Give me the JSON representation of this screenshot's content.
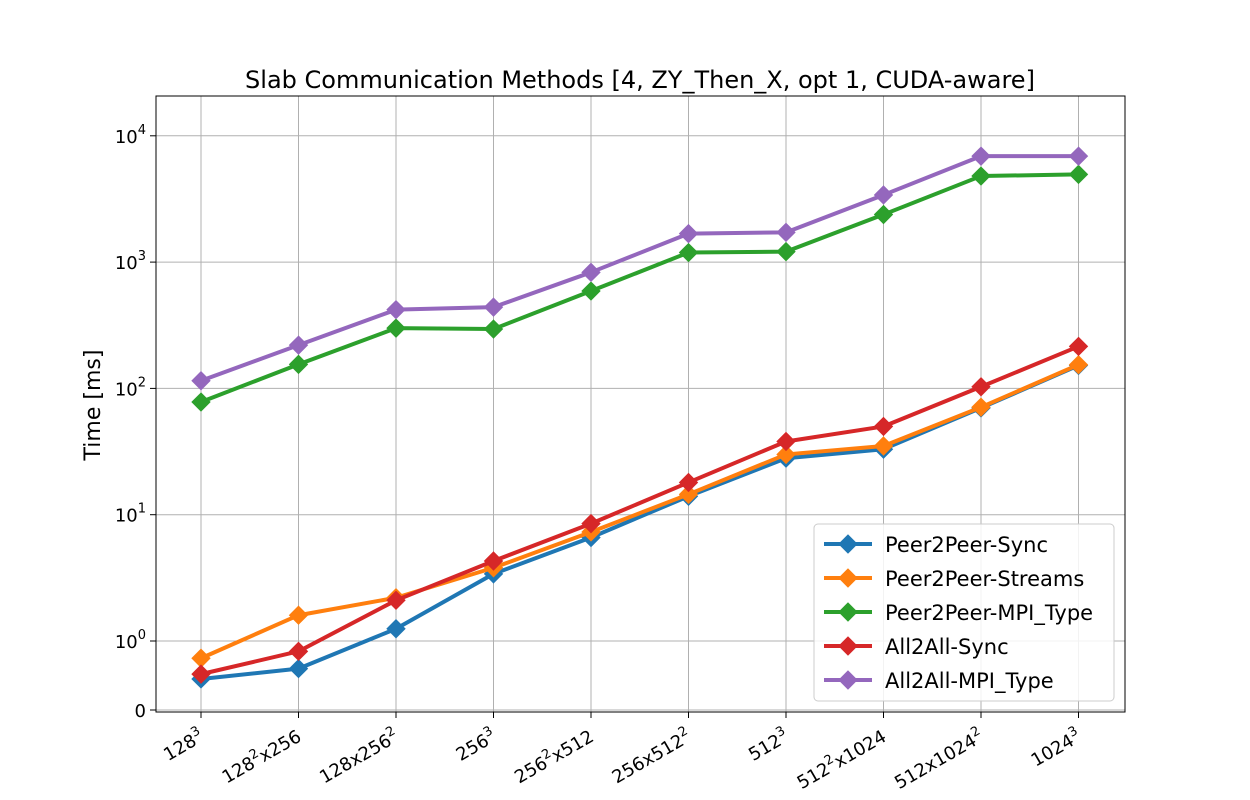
{
  "chart_data": {
    "type": "line",
    "title": "Slab Communication Methods [4, ZY_Then_X, opt 1, CUDA-aware]",
    "xlabel": "",
    "ylabel": "Time [ms]",
    "y_scale": "symlog",
    "symlog_linthresh": 1,
    "ylim": [
      0,
      12000
    ],
    "y_ticks": [
      {
        "value": 0,
        "base": "0",
        "exp": ""
      },
      {
        "value": 1,
        "base": "10",
        "exp": "0"
      },
      {
        "value": 10,
        "base": "10",
        "exp": "1"
      },
      {
        "value": 100,
        "base": "10",
        "exp": "2"
      },
      {
        "value": 1000,
        "base": "10",
        "exp": "3"
      },
      {
        "value": 10000,
        "base": "10",
        "exp": "4"
      }
    ],
    "categories": [
      {
        "parts": [
          {
            "t": "128"
          },
          {
            "t": "3",
            "sup": true
          }
        ]
      },
      {
        "parts": [
          {
            "t": "128"
          },
          {
            "t": "2",
            "sup": true
          },
          {
            "t": "x256"
          }
        ]
      },
      {
        "parts": [
          {
            "t": "128x256"
          },
          {
            "t": "2",
            "sup": true
          }
        ]
      },
      {
        "parts": [
          {
            "t": "256"
          },
          {
            "t": "3",
            "sup": true
          }
        ]
      },
      {
        "parts": [
          {
            "t": "256"
          },
          {
            "t": "2",
            "sup": true
          },
          {
            "t": "x512"
          }
        ]
      },
      {
        "parts": [
          {
            "t": "256x512"
          },
          {
            "t": "2",
            "sup": true
          }
        ]
      },
      {
        "parts": [
          {
            "t": "512"
          },
          {
            "t": "3",
            "sup": true
          }
        ]
      },
      {
        "parts": [
          {
            "t": "512"
          },
          {
            "t": "2",
            "sup": true
          },
          {
            "t": "x1024"
          }
        ]
      },
      {
        "parts": [
          {
            "t": "512x1024"
          },
          {
            "t": "2",
            "sup": true
          }
        ]
      },
      {
        "parts": [
          {
            "t": "1024"
          },
          {
            "t": "3",
            "sup": true
          }
        ]
      }
    ],
    "grid": true,
    "legend_position": "lower-right",
    "series": [
      {
        "name": "Peer2Peer-Sync",
        "color": "#1f77b4",
        "values": [
          0.45,
          0.6,
          1.25,
          3.4,
          6.6,
          14,
          28,
          33,
          70,
          152
        ]
      },
      {
        "name": "Peer2Peer-Streams",
        "color": "#ff7f0e",
        "values": [
          0.75,
          1.6,
          2.2,
          3.8,
          7.3,
          14.5,
          30,
          35,
          71,
          154
        ]
      },
      {
        "name": "Peer2Peer-MPI_Type",
        "color": "#2ca02c",
        "values": [
          78,
          155,
          300,
          295,
          590,
          1190,
          1210,
          2380,
          4800,
          4950
        ]
      },
      {
        "name": "All2All-Sync",
        "color": "#d62728",
        "values": [
          0.52,
          0.85,
          2.1,
          4.3,
          8.5,
          18,
          38,
          50,
          103,
          215
        ]
      },
      {
        "name": "All2All-MPI_Type",
        "color": "#9467bd",
        "values": [
          115,
          220,
          420,
          440,
          830,
          1680,
          1720,
          3400,
          6900,
          6900
        ]
      }
    ]
  }
}
